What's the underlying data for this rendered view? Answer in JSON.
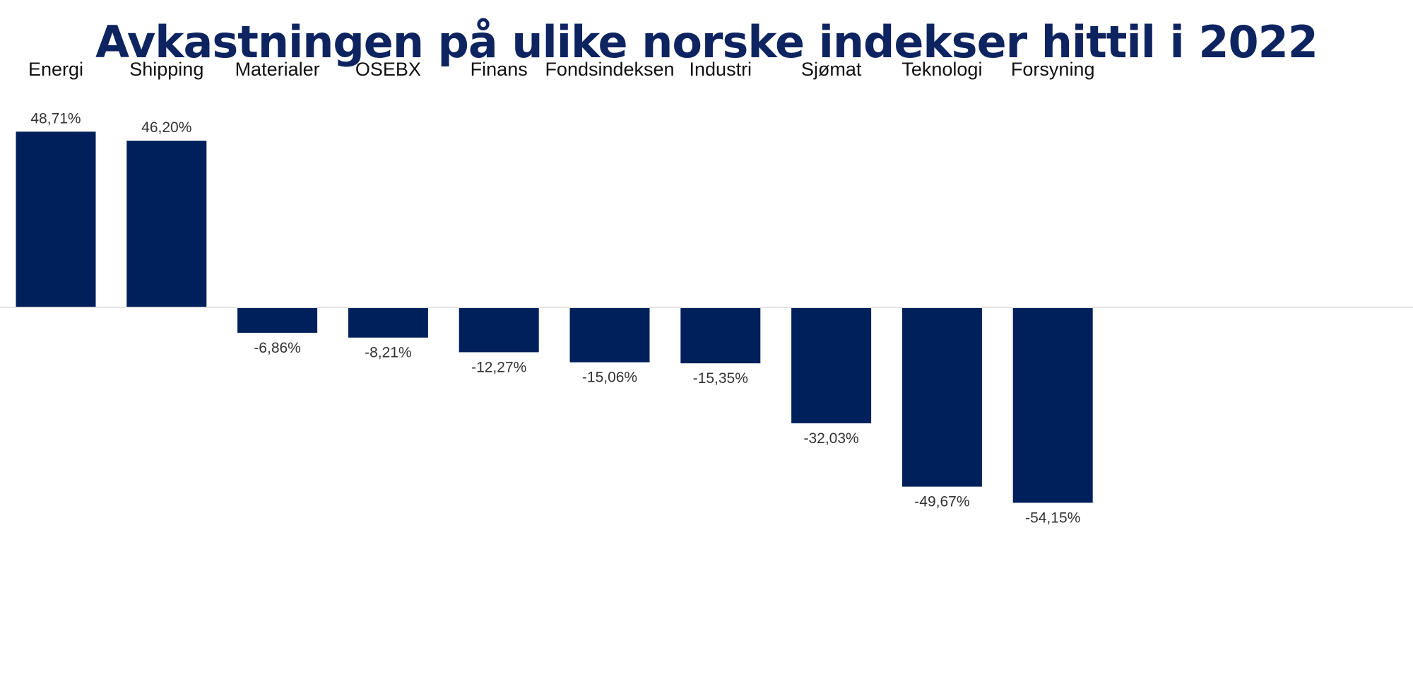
{
  "chart_data": {
    "type": "bar",
    "title": "Avkastningen på ulike norske indekser hittil i 2022",
    "categories": [
      "Energi",
      "Shipping",
      "Materialer",
      "OSEBX",
      "Finans",
      "Fondsindeksen",
      "Industri",
      "Sjømat",
      "Teknologi",
      "Forsyning"
    ],
    "values": [
      48.71,
      46.2,
      -6.86,
      -8.21,
      -12.27,
      -15.06,
      -15.35,
      -32.03,
      -49.67,
      -54.15
    ],
    "value_labels": [
      "48,71%",
      "46,20%",
      "-6,86%",
      "-8,21%",
      "-12,27%",
      "-15,06%",
      "-15,35%",
      "-32,03%",
      "-49,67%",
      "-54,15%"
    ],
    "xlabel": "",
    "ylabel": "",
    "ylim": [
      -54.15,
      48.71
    ],
    "grid": false,
    "legend": "none",
    "bar_color": "#00205b",
    "baseline_color": "#e3e3e3",
    "title_color": "#0e2460"
  }
}
